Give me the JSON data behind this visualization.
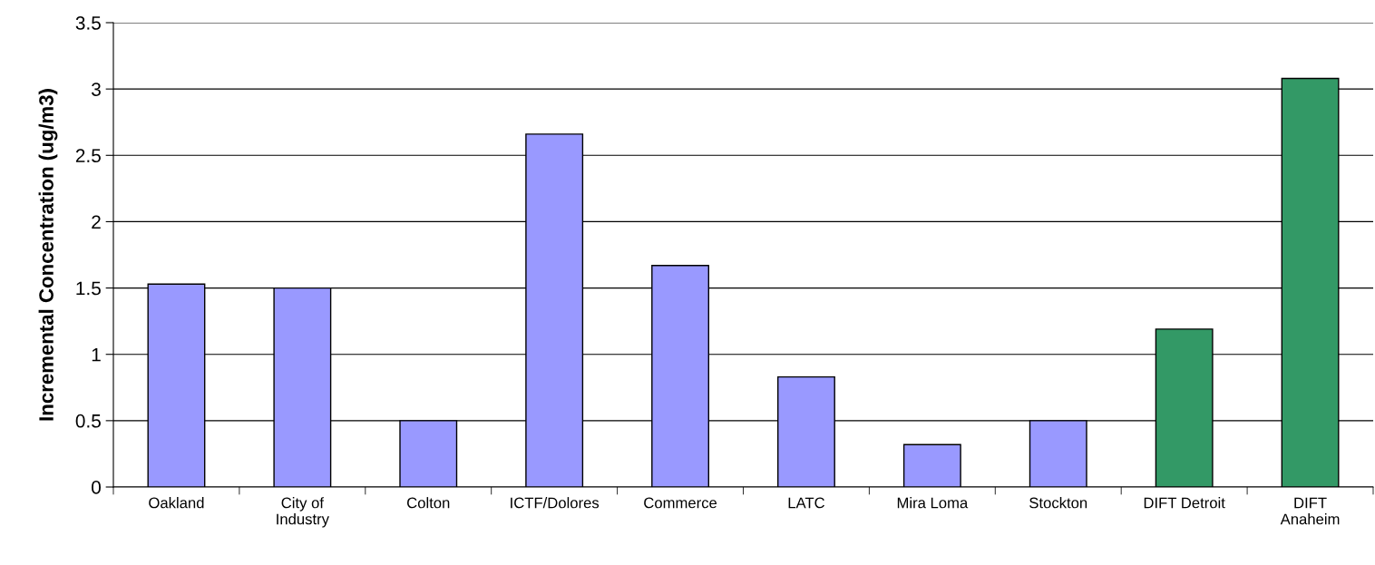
{
  "chart_data": {
    "type": "bar",
    "ylabel": "Incremental Concentration (ug/m3)",
    "categories": [
      "Oakland",
      "City of\nIndustry",
      "Colton",
      "ICTF/Dolores",
      "Commerce",
      "LATC",
      "Mira Loma",
      "Stockton",
      "DIFT Detroit",
      "DIFT\nAnaheim"
    ],
    "values": [
      1.53,
      1.5,
      0.5,
      2.66,
      1.67,
      0.83,
      0.32,
      0.5,
      1.19,
      3.08
    ],
    "colors": [
      "#9999ff",
      "#9999ff",
      "#9999ff",
      "#9999ff",
      "#9999ff",
      "#9999ff",
      "#9999ff",
      "#9999ff",
      "#339966",
      "#339966"
    ],
    "ylim": [
      0,
      3.5
    ],
    "yticks": [
      0,
      0.5,
      1,
      1.5,
      2,
      2.5,
      3,
      3.5
    ],
    "grid": "y"
  }
}
